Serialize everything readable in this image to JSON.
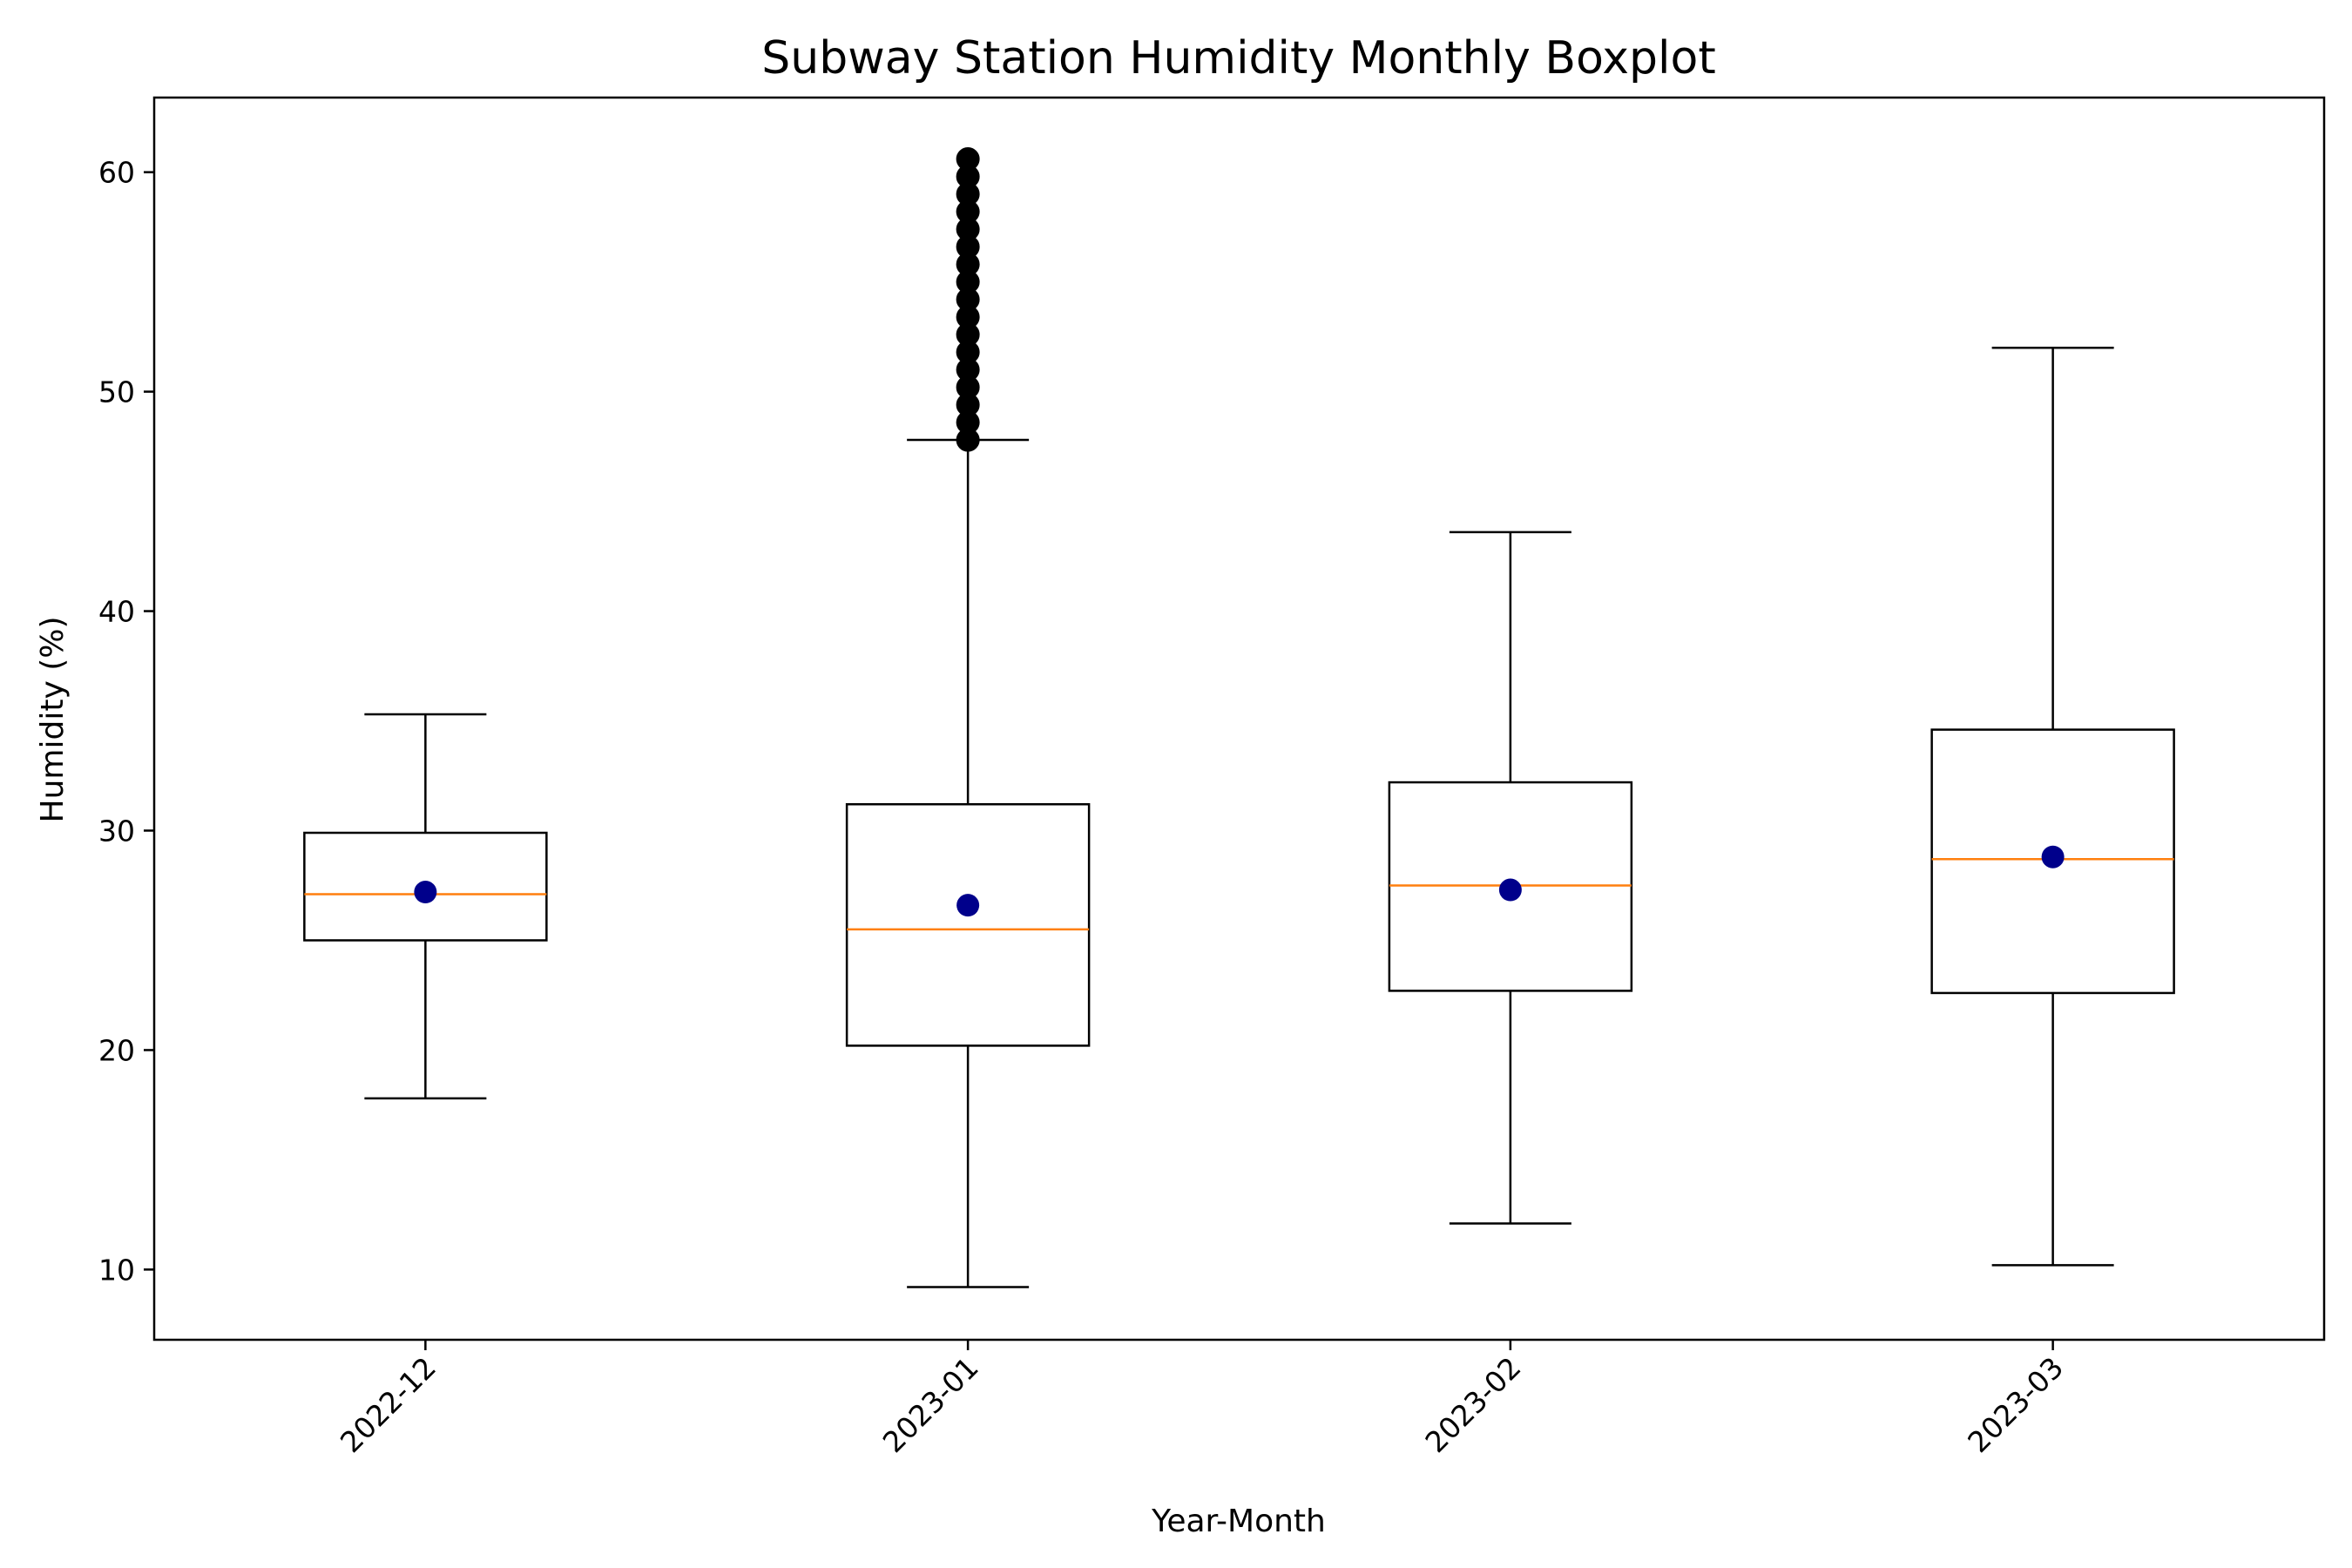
{
  "chart_data": {
    "type": "box",
    "title": "Subway Station Humidity Monthly Boxplot",
    "xlabel": "Year-Month",
    "ylabel": "Humidity (%)",
    "categories": [
      "2022-12",
      "2023-01",
      "2023-02",
      "2023-03"
    ],
    "ylim": [
      6.8,
      63.4
    ],
    "yticks": [
      10,
      20,
      30,
      40,
      50,
      60
    ],
    "grid": false,
    "boxes": [
      {
        "category": "2022-12",
        "whisker_low": 17.8,
        "q1": 25.0,
        "median": 27.1,
        "q3": 29.9,
        "whisker_high": 35.3,
        "mean": 27.2,
        "outliers": []
      },
      {
        "category": "2023-01",
        "whisker_low": 9.2,
        "q1": 20.2,
        "median": 25.5,
        "q3": 31.2,
        "whisker_high": 47.8,
        "mean": 26.6,
        "outliers": [
          47.8,
          48.6,
          49.4,
          50.2,
          51.0,
          51.8,
          52.6,
          53.4,
          54.2,
          55.0,
          55.8,
          56.6,
          57.4,
          58.2,
          59.0,
          59.8,
          60.6
        ]
      },
      {
        "category": "2023-02",
        "whisker_low": 12.1,
        "q1": 22.7,
        "median": 27.5,
        "q3": 32.2,
        "whisker_high": 43.6,
        "mean": 27.3,
        "outliers": []
      },
      {
        "category": "2023-03",
        "whisker_low": 10.2,
        "q1": 22.6,
        "median": 28.7,
        "q3": 34.6,
        "whisker_high": 52.0,
        "mean": 28.8,
        "outliers": []
      }
    ],
    "colors": {
      "box": "#000000",
      "median": "#ff7f0e",
      "mean": "#00008b",
      "outlier": "#000000"
    }
  }
}
